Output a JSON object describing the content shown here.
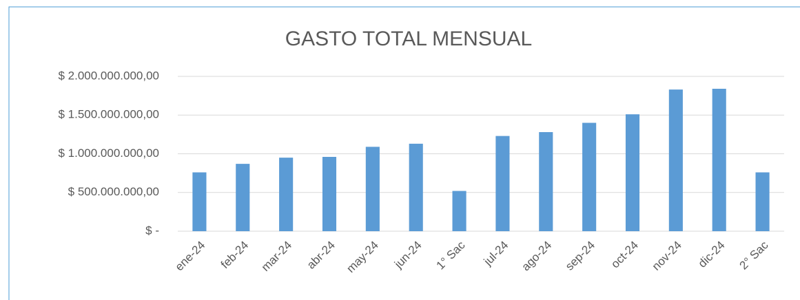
{
  "chart_data": {
    "type": "bar",
    "title": "GASTO TOTAL MENSUAL",
    "categories": [
      "ene-24",
      "feb-24",
      "mar-24",
      "abr-24",
      "may-24",
      "jun-24",
      "1° Sac",
      "jul-24",
      "ago-24",
      "sep-24",
      "oct-24",
      "nov-24",
      "dic-24",
      "2° Sac"
    ],
    "values": [
      760000000,
      870000000,
      950000000,
      960000000,
      1090000000,
      1130000000,
      520000000,
      1230000000,
      1280000000,
      1400000000,
      1510000000,
      1830000000,
      1840000000,
      760000000
    ],
    "color": "#5b9bd5",
    "ylim": [
      0,
      2000000000
    ],
    "yticks": [
      {
        "value": 0,
        "label": "$ -"
      },
      {
        "value": 500000000,
        "label": "$ 500.000.000,00"
      },
      {
        "value": 1000000000,
        "label": "$ 1.000.000.000,00"
      },
      {
        "value": 1500000000,
        "label": "$ 1.500.000.000,00"
      },
      {
        "value": 2000000000,
        "label": "$ 2.000.000.000,00"
      }
    ],
    "grid": true
  }
}
